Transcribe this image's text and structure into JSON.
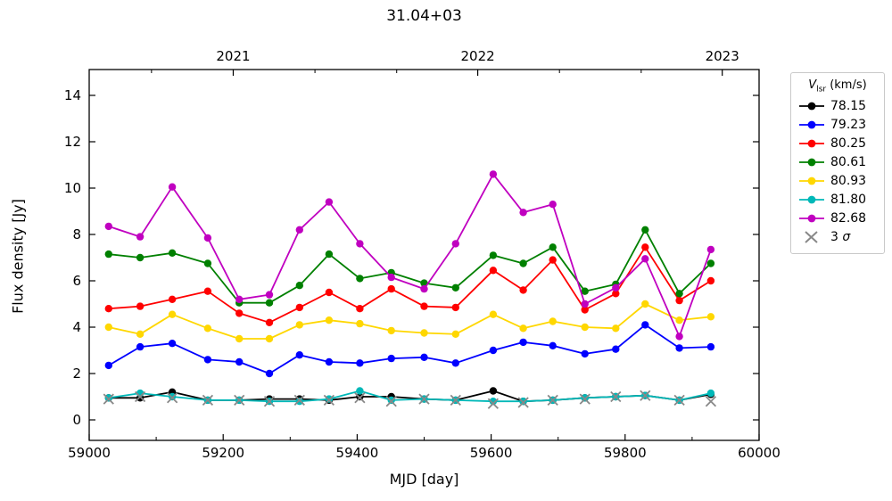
{
  "title": "31.04+03",
  "legend": {
    "title_prefix": "V",
    "title_sub": "lsr",
    "title_suffix": " (km/s)",
    "sigma_prefix": "3 ",
    "sigma_symbol": "σ",
    "sigma_color": "#888888"
  },
  "chart_data": {
    "type": "line",
    "title": "31.04+03",
    "xlabel": "MJD [day]",
    "ylabel": "Flux density [Jy]",
    "xlim": [
      59000,
      60000
    ],
    "ylim": [
      -0.9,
      15.1
    ],
    "grid": false,
    "legend_position": "outside-right",
    "x": [
      59029,
      59076,
      59124,
      59177,
      59224,
      59269,
      59314,
      59358,
      59404,
      59451,
      59500,
      59547,
      59603,
      59648,
      59692,
      59740,
      59786,
      59830,
      59881,
      59928
    ],
    "series": [
      {
        "name": "78.15",
        "color": "#000000",
        "values": [
          0.95,
          0.95,
          1.2,
          0.85,
          0.85,
          0.9,
          0.9,
          0.85,
          1.0,
          1.0,
          0.9,
          0.85,
          1.25,
          0.8,
          0.85,
          0.95,
          1.0,
          1.05,
          0.85,
          1.1
        ]
      },
      {
        "name": "79.23",
        "color": "#0000ff",
        "values": [
          2.35,
          3.15,
          3.3,
          2.6,
          2.5,
          2.0,
          2.8,
          2.5,
          2.45,
          2.65,
          2.7,
          2.45,
          3.0,
          3.35,
          3.2,
          2.85,
          3.05,
          4.1,
          3.1,
          3.15
        ]
      },
      {
        "name": "80.25",
        "color": "#ff0000",
        "values": [
          4.8,
          4.9,
          5.2,
          5.55,
          4.6,
          4.2,
          4.85,
          5.5,
          4.8,
          5.65,
          4.9,
          4.85,
          6.45,
          5.6,
          6.9,
          4.75,
          5.45,
          7.45,
          5.15,
          6.0
        ]
      },
      {
        "name": "80.61",
        "color": "#008000",
        "values": [
          7.15,
          7.0,
          7.2,
          6.75,
          5.05,
          5.05,
          5.8,
          7.15,
          6.1,
          6.35,
          5.9,
          5.7,
          7.1,
          6.75,
          7.45,
          5.55,
          5.85,
          8.2,
          5.45,
          6.75
        ]
      },
      {
        "name": "80.93",
        "color": "#ffd700",
        "values": [
          4.0,
          3.7,
          4.55,
          3.95,
          3.5,
          3.5,
          4.1,
          4.3,
          4.15,
          3.85,
          3.75,
          3.7,
          4.55,
          3.95,
          4.25,
          4.0,
          3.95,
          5.0,
          4.3,
          4.45
        ]
      },
      {
        "name": "81.80",
        "color": "#00b8b8",
        "values": [
          0.95,
          1.15,
          1.0,
          0.85,
          0.85,
          0.8,
          0.8,
          0.9,
          1.25,
          0.85,
          0.9,
          0.85,
          0.8,
          0.8,
          0.85,
          0.95,
          1.0,
          1.05,
          0.85,
          1.15
        ]
      },
      {
        "name": "82.68",
        "color": "#c000c0",
        "values": [
          8.35,
          7.9,
          10.05,
          7.85,
          5.2,
          5.4,
          8.2,
          9.4,
          7.6,
          6.15,
          5.65,
          7.6,
          10.6,
          8.95,
          9.3,
          5.0,
          5.7,
          6.95,
          3.6,
          7.35
        ]
      }
    ],
    "sigma_series": {
      "name": "3 σ",
      "marker": "x",
      "color": "#888888",
      "values": [
        0.9,
        1.0,
        0.95,
        0.85,
        0.85,
        0.8,
        0.85,
        0.85,
        0.95,
        0.8,
        0.9,
        0.85,
        0.7,
        0.75,
        0.85,
        0.9,
        1.0,
        1.05,
        0.85,
        0.8
      ]
    },
    "x_ticks": [
      59000,
      59200,
      59400,
      59600,
      59800,
      60000
    ],
    "x_tick_labels": [
      "59000",
      "59200",
      "59400",
      "59600",
      "59800",
      "60000"
    ],
    "x_minor_ticks": [
      59100,
      59300,
      59500,
      59700,
      59900
    ],
    "y_ticks": [
      0,
      2,
      4,
      6,
      8,
      10,
      12,
      14
    ],
    "y_tick_labels": [
      "0",
      "2",
      "4",
      "6",
      "8",
      "10",
      "12",
      "14"
    ],
    "top_axis_ticks": [
      {
        "mjd": 59215,
        "label": "2021"
      },
      {
        "mjd": 59580,
        "label": "2022"
      },
      {
        "mjd": 59945,
        "label": "2023"
      }
    ],
    "top_axis_minor_ticks": [
      59093,
      59337,
      59459,
      59702,
      59824
    ]
  }
}
